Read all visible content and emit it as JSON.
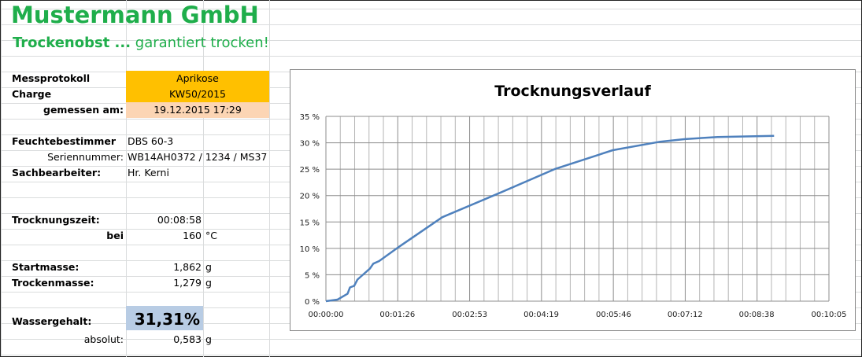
{
  "header": {
    "company": "Mustermann GmbH",
    "tagline_bold": "Trockenobst ...",
    "tagline_rest": " garantiert trocken!"
  },
  "protocol": {
    "messprotokoll_label": "Messprotokoll",
    "messprotokoll_value": "Aprikose",
    "charge_label": "Charge",
    "charge_value": "KW50/2015",
    "gemessen_label": "gemessen am:",
    "gemessen_value": "19.12.2015 17:29",
    "feuchte_label": "Feuchtebestimmer",
    "feuchte_value": "DBS 60-3",
    "serien_label": "Seriennummer:",
    "serien_value": "WB14AH0372 / 1234 / MS37",
    "sach_label": "Sachbearbeiter:",
    "sach_value": "Hr. Kerni",
    "zeit_label": "Trocknungszeit:",
    "zeit_value": "00:08:58",
    "bei_label": "bei",
    "bei_value": "160",
    "bei_unit": "°C",
    "start_label": "Startmasse:",
    "start_value": "1,862",
    "start_unit": "g",
    "trocken_label": "Trockenmasse:",
    "trocken_value": "1,279",
    "trocken_unit": "g",
    "wasser_label": "Wassergehalt:",
    "wasser_value": "31,31%",
    "absolut_label": "absolut:",
    "absolut_value": "0,583",
    "absolut_unit": "g"
  },
  "colors": {
    "green": "#1fae4b",
    "orange": "#ffc000",
    "peach": "#fcd5b4",
    "blue_cell": "#b8cce4",
    "line": "#4f81bd"
  },
  "chart_data": {
    "type": "line",
    "title": "Trocknungsverlauf",
    "xlim": [
      "00:00:00",
      "00:10:05"
    ],
    "ylim": [
      0,
      35
    ],
    "x_ticks": [
      "00:00:00",
      "00:01:26",
      "00:02:53",
      "00:04:19",
      "00:05:46",
      "00:07:12",
      "00:08:38",
      "00:10:05"
    ],
    "y_ticks": [
      "0 %",
      "5 %",
      "10 %",
      "15 %",
      "20 %",
      "25 %",
      "30 %",
      "35 %"
    ],
    "grid": true,
    "series": [
      {
        "x": [
          "00:00:00",
          "00:00:14",
          "00:00:26",
          "00:00:29",
          "00:00:34",
          "00:00:38",
          "00:00:53",
          "00:00:57",
          "00:01:04",
          "00:01:27",
          "00:02:20",
          "00:03:26",
          "00:04:35",
          "00:05:45",
          "00:06:42",
          "00:07:12",
          "00:07:51",
          "00:08:59"
        ],
        "y": [
          0,
          0.3,
          1.4,
          2.6,
          2.9,
          4.1,
          6.2,
          7.1,
          7.6,
          10.2,
          15.9,
          20.3,
          25.0,
          28.6,
          30.2,
          30.7,
          31.1,
          31.3
        ]
      }
    ]
  }
}
